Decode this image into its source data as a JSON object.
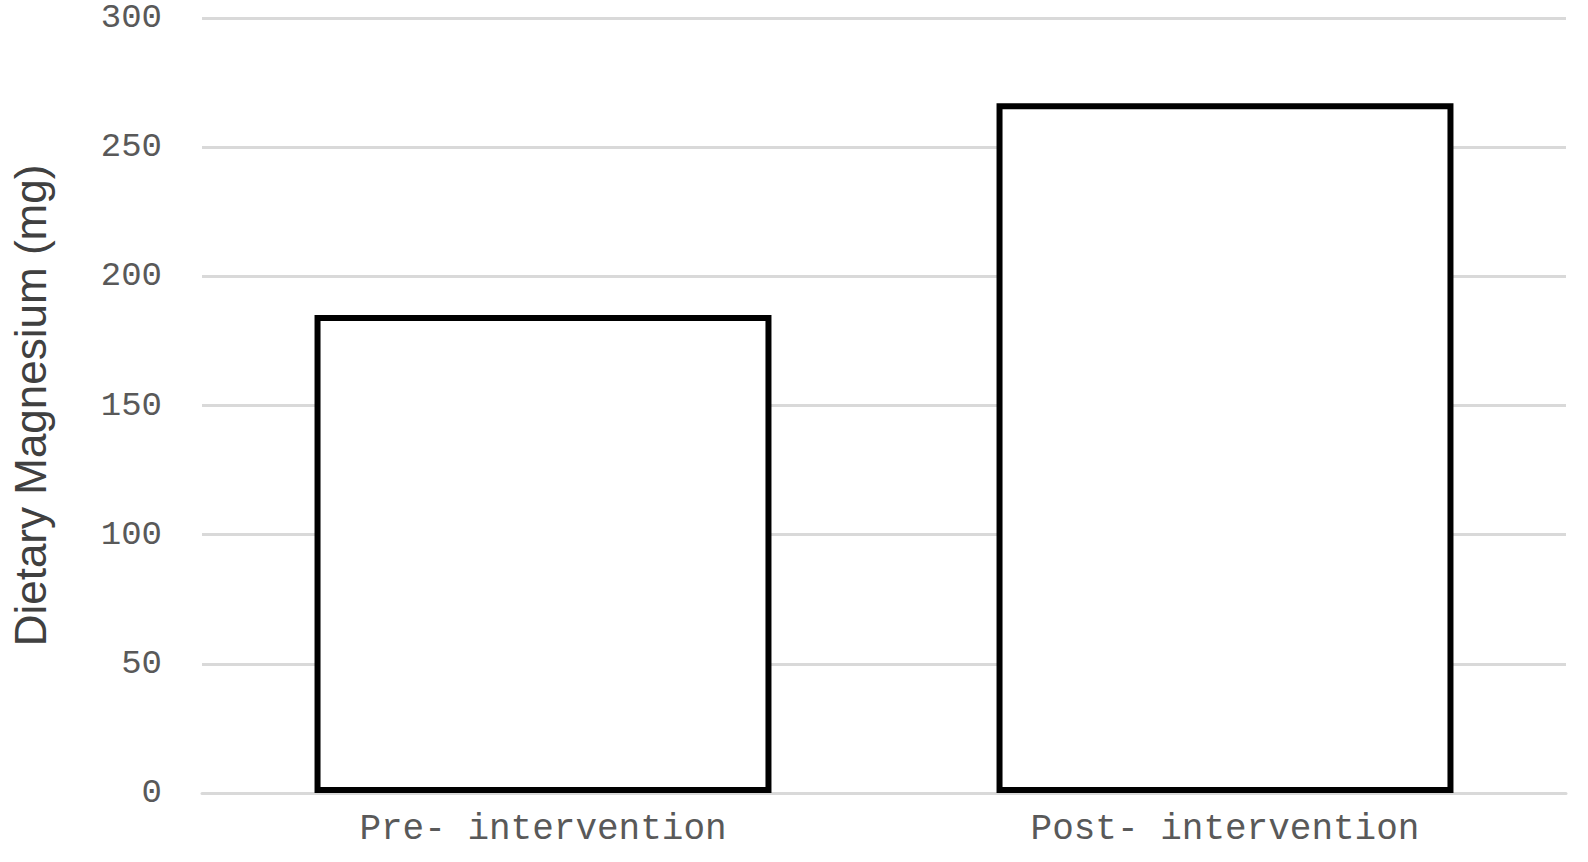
{
  "chart_data": {
    "type": "bar",
    "y_label": "Dietary Magnesium (mg)",
    "categories": [
      "Pre- intervention",
      "Post- intervention"
    ],
    "values": [
      185,
      267
    ],
    "color": "#ffffff",
    "ylim": [
      0,
      300
    ],
    "yticks": [
      0,
      50,
      100,
      150,
      200,
      250,
      300
    ],
    "grid": true
  }
}
